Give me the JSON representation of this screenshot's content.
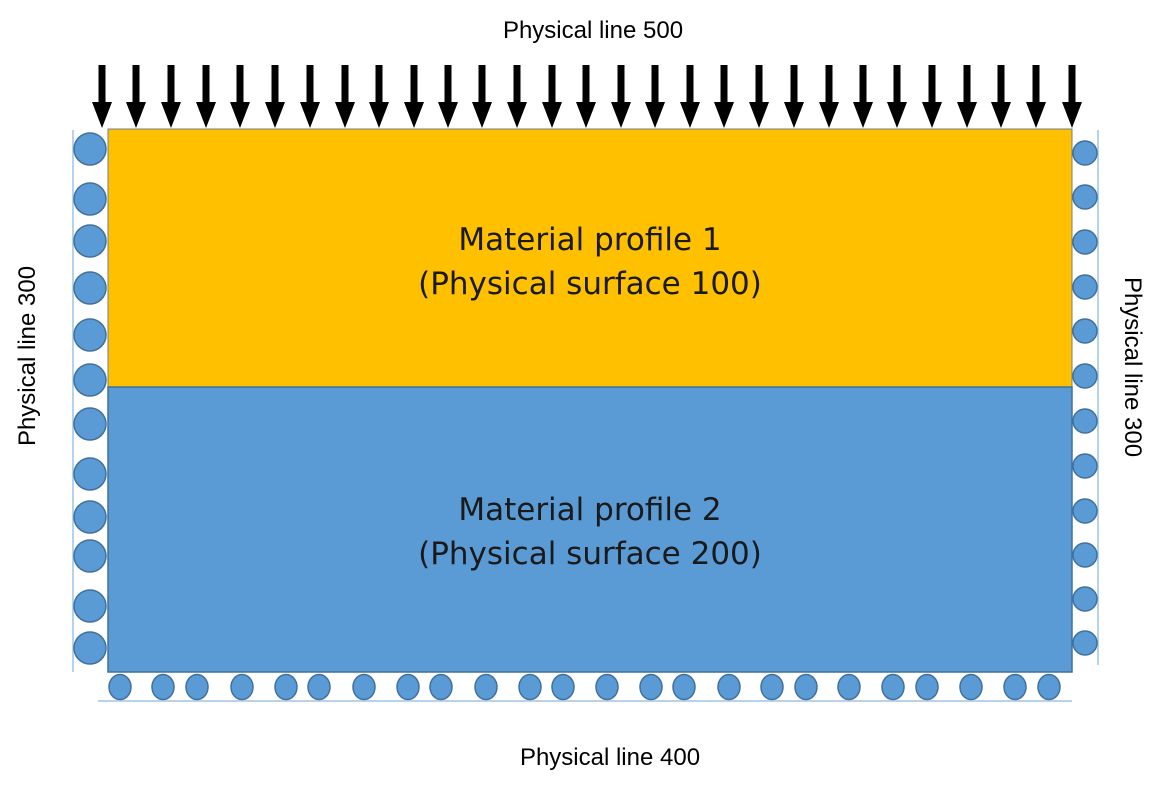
{
  "labels": {
    "top": "Physical line 500",
    "left": "Physical line 300",
    "right": "Physical line 300",
    "bottom": "Physical line 400"
  },
  "regions": {
    "upper": {
      "line1": "Material profile 1",
      "line2": "(Physical surface 100)",
      "color": "#FFC000"
    },
    "lower": {
      "line1": "Material profile 2",
      "line2": "(Physical surface 200)",
      "color": "#5B9BD5"
    }
  },
  "colors": {
    "roller_fill": "#5B9BD5",
    "roller_stroke": "#41719C",
    "arrow": "#000000",
    "support_line": "#9DC3E6"
  },
  "icons": {
    "load": "down-arrow-icon",
    "support": "roller-support-icon"
  }
}
